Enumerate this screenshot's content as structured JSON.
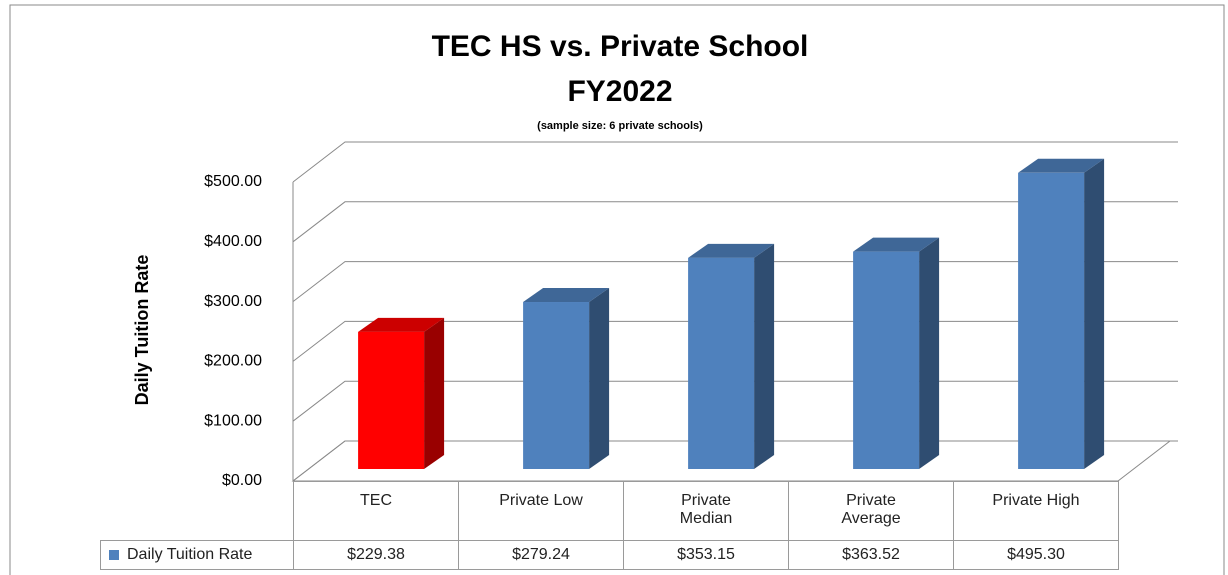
{
  "chart_data": {
    "type": "bar3d",
    "title": "TEC HS vs. Private School",
    "subtitle": "FY2022",
    "note": "(sample size: 6 private schools)",
    "y_label": "Daily Tuition Rate",
    "categories": [
      "TEC",
      "Private Low",
      "Private Median",
      "Private Average",
      "Private High"
    ],
    "series": [
      {
        "name": "Daily Tuition Rate",
        "color": "#4f81bd",
        "point_colors": [
          "#ff0000",
          "#4f81bd",
          "#4f81bd",
          "#4f81bd",
          "#4f81bd"
        ],
        "values": [
          229.38,
          279.24,
          353.15,
          363.52,
          495.3
        ],
        "value_labels": [
          "$229.38",
          "$279.24",
          "$353.15",
          "$363.52",
          "$495.30"
        ]
      }
    ],
    "ylim": [
      0,
      500
    ],
    "yticks": [
      {
        "value": 0,
        "label": "$0.00"
      },
      {
        "value": 100,
        "label": "$100.00"
      },
      {
        "value": 200,
        "label": "$200.00"
      },
      {
        "value": 300,
        "label": "$300.00"
      },
      {
        "value": 400,
        "label": "$400.00"
      },
      {
        "value": 500,
        "label": "$500.00"
      }
    ],
    "grid": true,
    "data_table": true
  }
}
